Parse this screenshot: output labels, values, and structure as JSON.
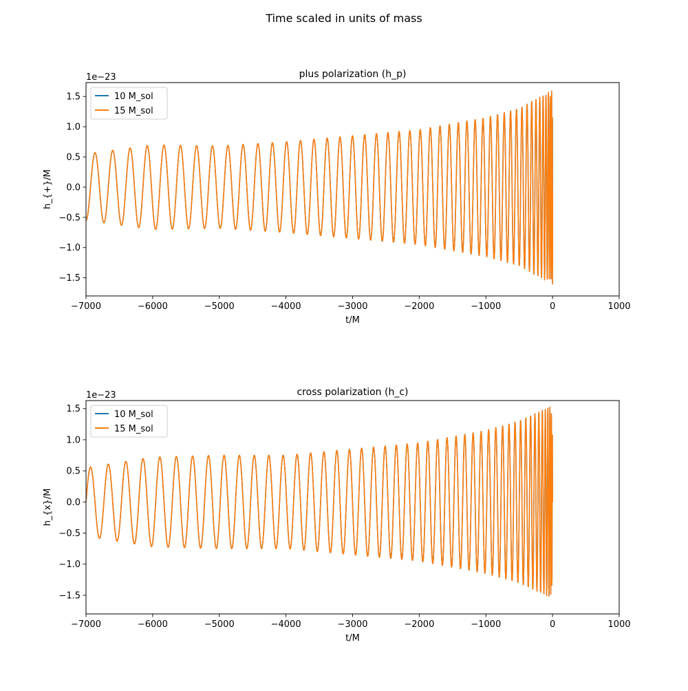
{
  "figure": {
    "suptitle": "Time scaled in units of mass"
  },
  "colors": {
    "series_1": "#1f77b4",
    "series_2": "#ff7f0e"
  },
  "chart_data": [
    {
      "type": "line",
      "title": "plus polarization (h_p)",
      "xlabel": "t/M",
      "ylabel": "h_{+}/M",
      "offset_text": "1e−23",
      "y_scale_exponent": -23,
      "xlim": [
        -7000,
        1000
      ],
      "ylim": [
        -1.8,
        1.73
      ],
      "xticks": [
        -7000,
        -6000,
        -5000,
        -4000,
        -3000,
        -2000,
        -1000,
        0,
        1000
      ],
      "xtick_labels": [
        "−7000",
        "−6000",
        "−5000",
        "−4000",
        "−3000",
        "−2000",
        "−1000",
        "0",
        "1000"
      ],
      "yticks": [
        -1.5,
        -1.0,
        -0.5,
        0.0,
        0.5,
        1.0,
        1.5
      ],
      "ytick_labels": [
        "−1.5",
        "−1.0",
        "−0.5",
        "0.0",
        "0.5",
        "1.0",
        "1.5"
      ],
      "grid": false,
      "legend_position": "upper-left",
      "waveform": {
        "t_start": -7000,
        "t_end": 0,
        "cycles": 47,
        "phase0": -1.571,
        "amplitude": [
          [
            -7000,
            0.55
          ],
          [
            -6000,
            0.7
          ],
          [
            -5000,
            0.68
          ],
          [
            -4000,
            0.75
          ],
          [
            -3000,
            0.85
          ],
          [
            -2000,
            0.95
          ],
          [
            -1000,
            1.15
          ],
          [
            -500,
            1.3
          ],
          [
            -100,
            1.55
          ],
          [
            0,
            1.6
          ]
        ],
        "end_value": -0.1
      },
      "series": [
        {
          "name": "10 M_sol",
          "end_value": 1.1
        },
        {
          "name": "15 M_sol",
          "end_value": -0.1
        }
      ]
    },
    {
      "type": "line",
      "title": "cross polarization (h_c)",
      "xlabel": "t/M",
      "ylabel": "h_{x}/M",
      "offset_text": "1e−23",
      "y_scale_exponent": -23,
      "xlim": [
        -7000,
        1000
      ],
      "ylim": [
        -1.8,
        1.63
      ],
      "xticks": [
        -7000,
        -6000,
        -5000,
        -4000,
        -3000,
        -2000,
        -1000,
        0,
        1000
      ],
      "xtick_labels": [
        "−7000",
        "−6000",
        "−5000",
        "−4000",
        "−3000",
        "−2000",
        "−1000",
        "0",
        "1000"
      ],
      "yticks": [
        -1.5,
        -1.0,
        -0.5,
        0.0,
        0.5,
        1.0,
        1.5
      ],
      "ytick_labels": [
        "−1.5",
        "−1.0",
        "−0.5",
        "0.0",
        "0.5",
        "1.0",
        "1.5"
      ],
      "grid": false,
      "legend_position": "upper-left",
      "waveform": {
        "t_start": -7000,
        "t_end": 0,
        "cycles": 47,
        "phase0": 0.0,
        "amplitude": [
          [
            -7000,
            0.55
          ],
          [
            -6000,
            0.72
          ],
          [
            -5000,
            0.75
          ],
          [
            -4000,
            0.75
          ],
          [
            -3000,
            0.85
          ],
          [
            -2000,
            0.95
          ],
          [
            -1000,
            1.15
          ],
          [
            -500,
            1.3
          ],
          [
            -100,
            1.5
          ],
          [
            0,
            1.55
          ]
        ],
        "end_value": 0.05
      },
      "series": [
        {
          "name": "10 M_sol",
          "end_value": 0.5
        },
        {
          "name": "15 M_sol",
          "end_value": 0.05
        }
      ]
    }
  ]
}
